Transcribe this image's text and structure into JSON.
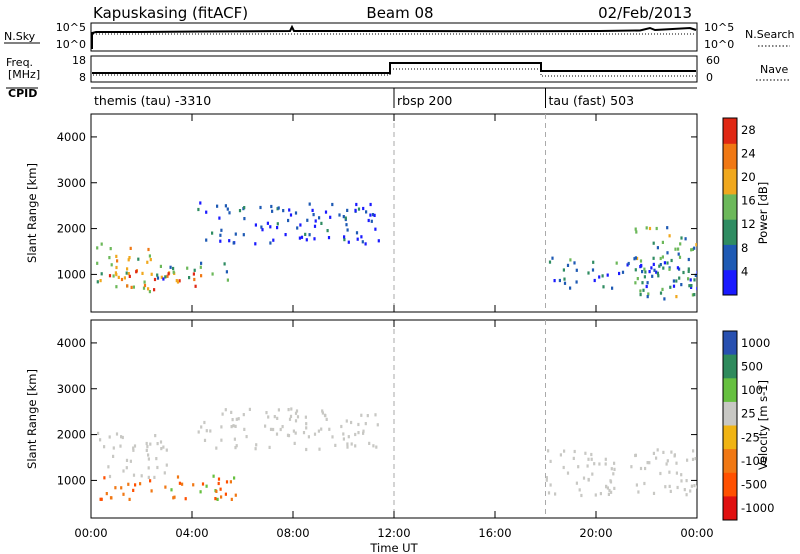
{
  "header": {
    "site": "Kapuskasing (fitACF)",
    "beam": "Beam 08",
    "date": "02/Feb/2013"
  },
  "panel_labels": {
    "nsky": "N.Sky",
    "nsky_ticks": [
      "10^5",
      "10^0"
    ],
    "nsearch": "N.Search",
    "nsearch_ticks": [
      "10^5",
      "10^0"
    ],
    "freq_line1": "Freq.",
    "freq_line2": "[MHz]",
    "freq_ticks": [
      "18",
      "8"
    ],
    "nave": "Nave",
    "nave_ticks": [
      "60",
      "0"
    ],
    "cpid": "CPID"
  },
  "cpid_segments": [
    {
      "label": "themis (tau) -3310",
      "start": "00:00",
      "end": "12:00"
    },
    {
      "label": "rbsp 200",
      "start": "12:00",
      "end": "18:00"
    },
    {
      "label": "tau (fast) 503",
      "start": "18:00",
      "end": "24:00"
    }
  ],
  "colors": {
    "ground_scatter": "#c8c8c4",
    "frame": "#000000"
  },
  "chart_data": [
    {
      "type": "heatmap",
      "title": "",
      "xlabel": "Time UT",
      "ylabel": "Slant Range [km]",
      "x_ticks": [
        "00:00",
        "04:00",
        "08:00",
        "12:00",
        "16:00",
        "20:00",
        "00:00"
      ],
      "y_ticks": [
        "1000",
        "2000",
        "3000",
        "4000"
      ],
      "xlim_hours": [
        0,
        24
      ],
      "ylim_km": [
        180,
        4500
      ],
      "colorbar": {
        "label": "Power [dB]",
        "ticks": [
          "4",
          "8",
          "12",
          "16",
          "20",
          "24",
          "28"
        ],
        "range": [
          0,
          30
        ],
        "colors": [
          "#1a1aff",
          "#1e5ab4",
          "#2f8c62",
          "#6cb85a",
          "#f0a81e",
          "#f07814",
          "#e02814"
        ]
      },
      "scatter_regions": [
        {
          "t0": 0.2,
          "t1": 2.5,
          "r0": 600,
          "r1": 1700,
          "level": 0.55
        },
        {
          "t0": 0.5,
          "t1": 4.5,
          "r0": 700,
          "r1": 1100,
          "level": 0.8
        },
        {
          "t0": 2.5,
          "t1": 5.5,
          "r0": 900,
          "r1": 1300,
          "level": 0.35
        },
        {
          "t0": 4.2,
          "t1": 11.4,
          "r0": 1700,
          "r1": 2600,
          "level": 0.15
        },
        {
          "t0": 18.0,
          "t1": 24.0,
          "r0": 700,
          "r1": 1400,
          "level": 0.25
        },
        {
          "t0": 21.5,
          "t1": 24.0,
          "r0": 500,
          "r1": 2100,
          "level": 0.4
        }
      ],
      "grid": false,
      "legend": "right"
    },
    {
      "type": "heatmap",
      "title": "",
      "xlabel": "Time UT",
      "ylabel": "Slant Range [km]",
      "x_ticks": [
        "00:00",
        "04:00",
        "08:00",
        "12:00",
        "16:00",
        "20:00",
        "00:00"
      ],
      "y_ticks": [
        "1000",
        "2000",
        "3000",
        "4000"
      ],
      "xlim_hours": [
        0,
        24
      ],
      "ylim_km": [
        180,
        4500
      ],
      "colorbar": {
        "label": "Velocity [m s-1]",
        "ticks": [
          "1000",
          "500",
          "100",
          "25",
          "-25",
          "-100",
          "-500",
          "-1000"
        ],
        "range": [
          -1000,
          1000
        ],
        "colors": [
          "#2850b0",
          "#2e8a5c",
          "#66c040",
          "#c8c8c4",
          "#f0b414",
          "#f07814",
          "#ff5000",
          "#e01010"
        ]
      },
      "scatter_regions": [
        {
          "t0": 0.3,
          "t1": 5.8,
          "r0": 600,
          "r1": 1150,
          "class": "negative_velocity"
        },
        {
          "t0": 0.2,
          "t1": 3.0,
          "r0": 1100,
          "r1": 2100,
          "class": "ground_scatter"
        },
        {
          "t0": 4.2,
          "t1": 11.4,
          "r0": 1700,
          "r1": 2600,
          "class": "ground_scatter"
        },
        {
          "t0": 18.0,
          "t1": 24.0,
          "r0": 700,
          "r1": 1700,
          "class": "ground_scatter"
        }
      ],
      "grid": false,
      "legend": "right"
    }
  ]
}
